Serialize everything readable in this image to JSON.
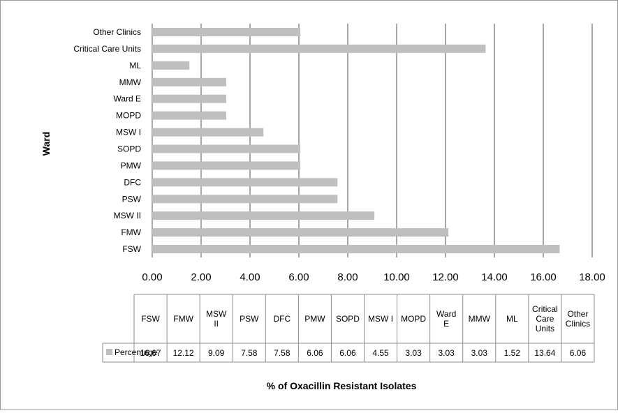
{
  "chart_data": {
    "type": "bar",
    "orientation": "horizontal",
    "categories": [
      "FSW",
      "FMW",
      "MSW II",
      "PSW",
      "DFC",
      "PMW",
      "SOPD",
      "MSW I",
      "MOPD",
      "Ward E",
      "MMW",
      "ML",
      "Critical Care Units",
      "Other Clinics"
    ],
    "table_headers": [
      [
        "FSW"
      ],
      [
        "FMW"
      ],
      [
        "MSW",
        "II"
      ],
      [
        "PSW"
      ],
      [
        "DFC"
      ],
      [
        "PMW"
      ],
      [
        "SOPD"
      ],
      [
        "MSW I"
      ],
      [
        "MOPD"
      ],
      [
        "Ward",
        "E"
      ],
      [
        "MMW"
      ],
      [
        "ML"
      ],
      [
        "Critical",
        "Care",
        "Units"
      ],
      [
        "Other",
        "Clinics"
      ]
    ],
    "series": [
      {
        "name": "Percentage",
        "values": [
          16.67,
          12.12,
          9.09,
          7.58,
          7.58,
          6.06,
          6.06,
          4.55,
          3.03,
          3.03,
          3.03,
          1.52,
          13.64,
          6.06
        ],
        "value_labels": [
          "16.67",
          "12.12",
          "9.09",
          "7.58",
          "7.58",
          "6.06",
          "6.06",
          "4.55",
          "3.03",
          "3.03",
          "3.03",
          "1.52",
          "13.64",
          "6.06"
        ]
      }
    ],
    "xlim": [
      0,
      18
    ],
    "x_ticks": [
      "0.00",
      "2.00",
      "4.00",
      "6.00",
      "8.00",
      "10.00",
      "12.00",
      "14.00",
      "16.00",
      "18.00"
    ],
    "xlabel": "% of Oxacillin Resistant Isolates",
    "ylabel": "Ward",
    "grid": "vertical",
    "data_table": true,
    "colors": {
      "bar": "#bfbfbf",
      "grid": "#4d4d4d",
      "border": "#8c8c8c"
    }
  }
}
